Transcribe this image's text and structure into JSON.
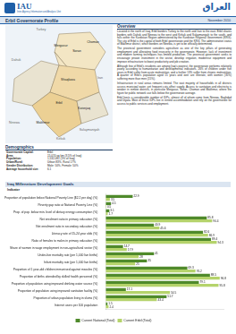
{
  "header": {
    "org": "IAU",
    "org_sub": "Inter-Agency Information and Analysis Unit",
    "arabic": "العراق",
    "title": "Erbil Governorate Profile",
    "date": "November 2010"
  },
  "map": {
    "labels": [
      "Turkey",
      "Iran",
      "Dahuk",
      "Ninewa",
      "Kirkuk",
      "Sulaymaniyah",
      "Mergasur",
      "Soran",
      "Choman",
      "Shaqlawa",
      "Erbil",
      "Koisnjaq",
      "Makhmur"
    ]
  },
  "overview": {
    "heading": "Overview",
    "paragraphs": [
      "Located in the north of Iraq, Erbil borders Turkey to the north and Iran to the east. Erbil shares borders with Dahuk and Ninewa to the west and Kirkuk and Sulaymaniyah to the south, and falls within the Kurdistan Region administered by the Kurdistan Regional Government (KRG). The city of Erbil is the capital of both Erbil governorate and the KRG. The administrative status of Makhmur district, which borders on Ninewa, is yet to be officially determined.",
      "The provincial government considers agriculture as one of the key pillars of generating employment and alleviating food insecurity in the governorate. However, lack of investment and modern farming techniques has limited production. The provincial government seeks to encourage private investment in the sector, develop irrigation, modernise equipment and improve infrastructure to boost productivity and job creation.",
      "Although few of Erbil's residents are among Iraq's poorest, the governorate performs relatively poorly according to humanitarian and developmental indicators. 26% of children under five years in Erbil suffer from acute malnutrition, and a further 13% suffer from chronic malnutrition. A quarter of Erbil's population aged 15 years and over are illiterate, with women (35%) suffering more than men (15%).",
      "Infrastructure in rural areas remains limited. The vast majority of households in all districts access municipal water, yet frequent cuts affect supply. Access to sanitation and electricity is weaker in remote districts, in particular Mergasur, Soran, Choman and Makhmur, where the figure for public network use falls below the governorate average.",
      "Erbil hosts a considerable number of IDPs, almost all of whom come from Ninewa, Baghdad and Diyala. Most of these IDPs live in rented accommodation and rely on the governorate for access to public services and employment."
    ]
  },
  "demographics": {
    "heading": "Demographics",
    "rows": [
      [
        "Governorate Capital:",
        "Erbil"
      ],
      [
        "Area:",
        "15,074 sq km (3.5% of Iraq)"
      ],
      [
        "Population:",
        "1,532,081 (5% of Iraq)"
      ],
      [
        "Urban/Rural:",
        "Urban 83%, Rural 17%"
      ],
      [
        "Gender Distribution:",
        "Male: 50%, Female: 50%"
      ],
      [
        "Average household size:",
        "6.1"
      ]
    ]
  },
  "mdg": {
    "heading": "Iraq Millennium Development Goals",
    "indicator_heading": "Indicator"
  },
  "chart_data": {
    "type": "bar",
    "orientation": "horizontal",
    "legend": "bottom",
    "grid": false,
    "data_labels": true,
    "tick_labels": "y",
    "categories": [
      "Proportion of population below National Poverty Line ($2.2 per day) (%)",
      "Poverty gap ratio at National Poverty Line (%)",
      "Prop. of pop. below min. level of dietary energy consumption (%)",
      "Net enrolment ratio in primary education (%)",
      "Net enrolment ratio in secondary education (%)",
      "Literacy rate of 15-24 year olds (%)",
      "Ratio of females to males in primary education (%)",
      "Share of women in wage employment in non-agricultural sector (%)",
      "Under-five mortality rate (per 1,000 live births)",
      "Infant mortality rate (per 1,000 live births)",
      "Proportion of 1 year-old children immunised against measles (%)",
      "Proportion of births attended by skilled health personnel (%)",
      "Proportion of population using improved drinking water source (%)",
      "Proportion of population using improved sanitation facility (%)",
      "Proportion of urban population living in slums (%)",
      "Internet users per 100 population"
    ],
    "xlim": [
      0,
      100
    ],
    "series": [
      {
        "name": "Current National (Total)",
        "color": "#4f8a2b",
        "values": [
          22.9,
          4.5,
          3.1,
          85.8,
          40.9,
          82.6,
          89.4,
          14.7,
          41,
          35,
          69.3,
          88.5,
          79.1,
          17.1,
          51.7,
          1.5
        ]
      },
      {
        "name": "Current Erbil (Total)",
        "color": "#b5d36b",
        "values": [
          3.5,
          0.5,
          1.7,
          90.4,
          45.6,
          86.9,
          94.3,
          17.9,
          28,
          25,
          76.2,
          96.8,
          95.8,
          54.5,
          43.4,
          2.4
        ]
      }
    ]
  }
}
